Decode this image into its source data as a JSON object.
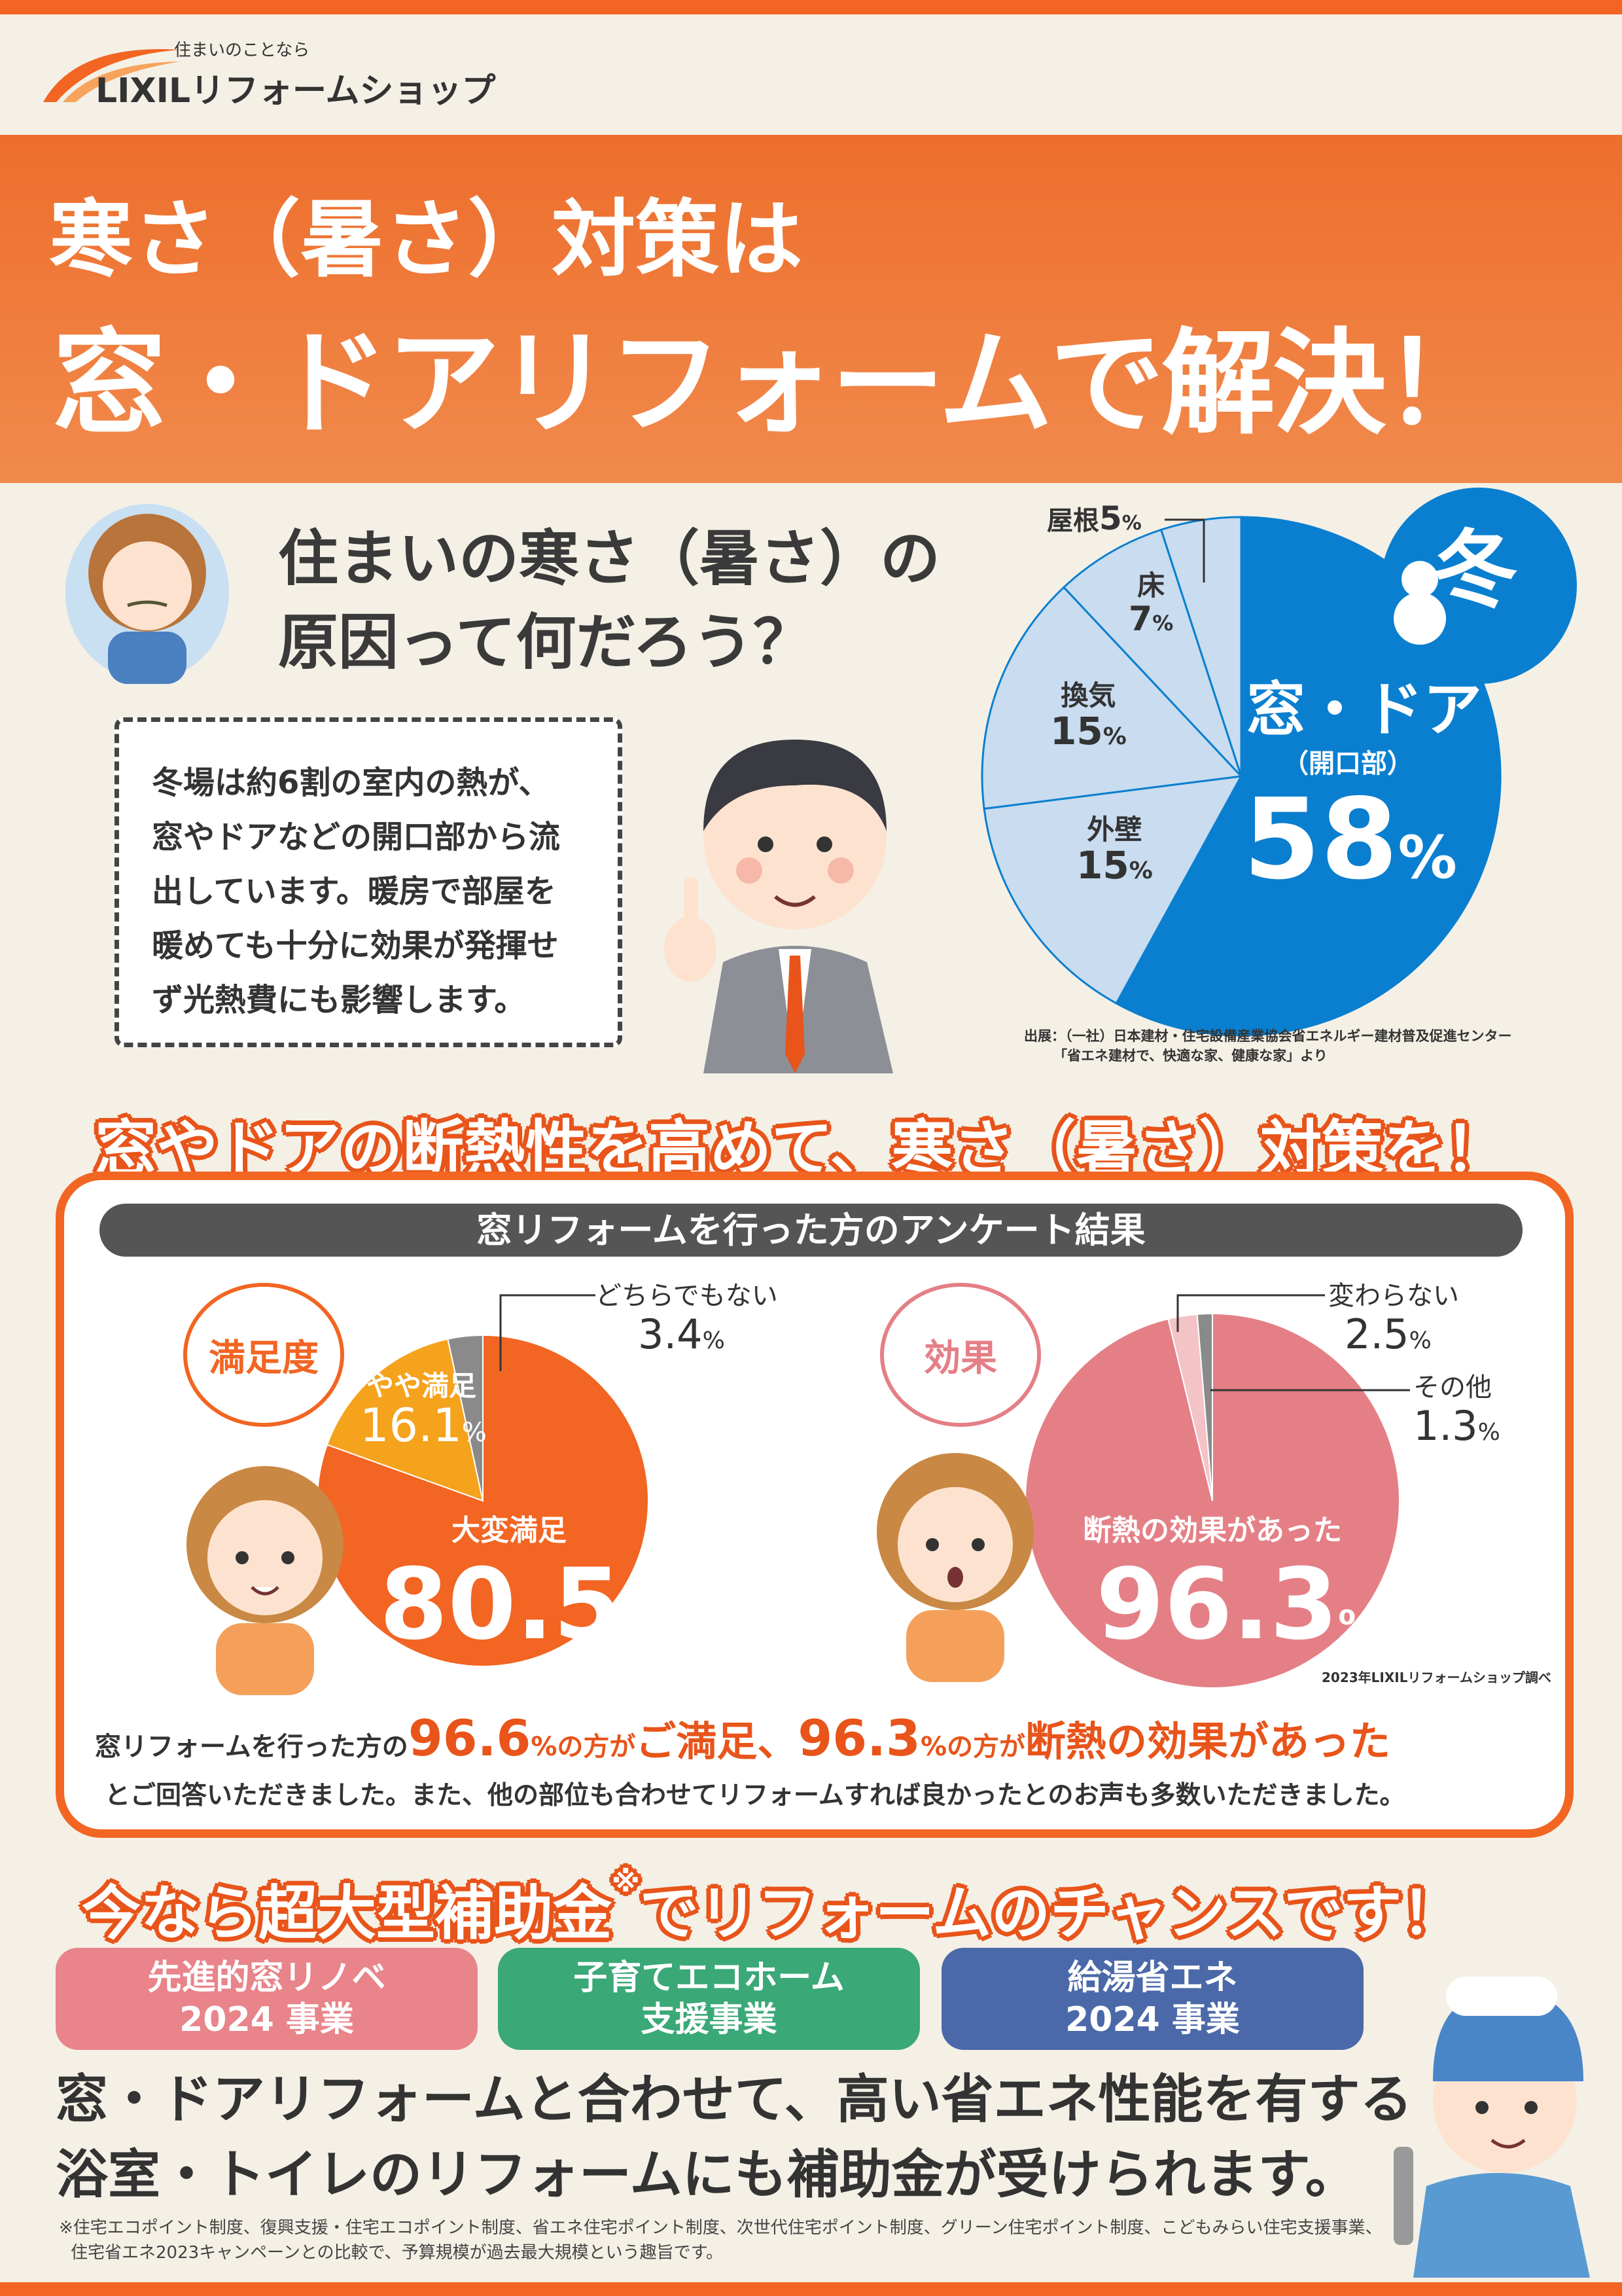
{
  "logo": {
    "tagline": "住まいのことなら",
    "name": "LIXILリフォームショップ"
  },
  "header": {
    "line1": "寒さ（暑さ）対策は",
    "line2": "窓・ドアリフォームで解決！"
  },
  "question": {
    "line1": "住まいの寒さ（暑さ）の",
    "line2": "原因って何だろう？"
  },
  "explanation": [
    "冬場は約6割の室内の熱が、",
    "窓やドアなどの開口部から流",
    "出しています。暖房で部屋を",
    "暖めても十分に効果が発揮せ",
    "ず光熱費にも影響します。"
  ],
  "winter_badge": "冬",
  "source": {
    "line1": "出展：（一社）日本建材・住宅設備産業協会省エネルギー建材普及促進センター",
    "line2": "「省エネ建材で、快適な家、健康な家」より"
  },
  "headline2": "窓やドアの断熱性を高めて、寒さ（暑さ）対策を！",
  "survey": {
    "title": "窓リフォームを行った方のアンケート結果",
    "bubble_left": "満足度",
    "bubble_right": "効果",
    "credit": "2023年LIXILリフォームショップ調べ",
    "summary": {
      "a": "窓リフォームを行った方の",
      "v1": "96.6",
      "u1": "%の方が",
      "s1": "ご満足、",
      "v2": "96.3",
      "u2": "%の方が",
      "s2": "断熱の効果があった",
      "line2": "とご回答いただきました。また、他の部位も合わせてリフォームすれば良かったとのお声も多数いただきました。"
    }
  },
  "headline3": {
    "text": "今なら超大型補助金",
    "mark": "※",
    "text2": "でリフォームのチャンスです！"
  },
  "programs": [
    {
      "line1": "先進的窓リノベ",
      "line2": "2024 事業",
      "color": "#e8848a"
    },
    {
      "line1": "子育てエコホーム",
      "line2": "支援事業",
      "color": "#3aa877"
    },
    {
      "line1": "給湯省エネ",
      "line2": "2024 事業",
      "color": "#4b69a8"
    }
  ],
  "body": {
    "line1": "窓・ドアリフォームと合わせて、高い省エネ性能を有する",
    "line2": "浴室・トイレのリフォームにも補助金が受けられます。"
  },
  "footnote": {
    "line1": "※住宅エコポイント制度、復興支援・住宅エコポイント制度、省エネ住宅ポイント制度、次世代住宅ポイント制度、グリーン住宅ポイント制度、こどもみらい住宅支援事業、",
    "line2": "住宅省エネ2023キャンペーンとの比較で、予算規模が過去最大規模という趣旨です。"
  },
  "colors": {
    "brand_orange": "#f26522",
    "pie_blue": "#0a7fd0",
    "pie_light_blue": "#c9dcf0"
  },
  "chart_data": [
    {
      "type": "pie",
      "title": "",
      "unit": "%",
      "start": "top",
      "direction": "clockwise",
      "slices": [
        {
          "label": "窓・ドア",
          "sub": "（開口部）",
          "value": 58,
          "color": "#0a7fd0"
        },
        {
          "label": "外壁",
          "value": 15,
          "color": "#c9dcf0"
        },
        {
          "label": "換気",
          "value": 15,
          "color": "#c9dcf0"
        },
        {
          "label": "床",
          "value": 7,
          "color": "#c9dcf0"
        },
        {
          "label": "屋根",
          "value": 5,
          "color": "#c9dcf0"
        }
      ]
    },
    {
      "type": "pie",
      "title": "満足度",
      "unit": "%",
      "start": "top",
      "direction": "clockwise",
      "slices": [
        {
          "label": "大変満足",
          "value": 80.5,
          "color": "#f26522"
        },
        {
          "label": "やや満足",
          "value": 16.1,
          "color": "#f5a21c"
        },
        {
          "label": "どちらでもない",
          "value": 3.4,
          "color": "#8a8a8a"
        }
      ]
    },
    {
      "type": "pie",
      "title": "効果",
      "unit": "%",
      "start": "top",
      "direction": "clockwise",
      "slices": [
        {
          "label": "断熱の効果があった",
          "value": 96.3,
          "color": "#e57f86"
        },
        {
          "label": "変わらない",
          "value": 2.5,
          "color": "#f3c3c6"
        },
        {
          "label": "その他",
          "value": 1.3,
          "color": "#8a8a8a"
        }
      ]
    }
  ]
}
